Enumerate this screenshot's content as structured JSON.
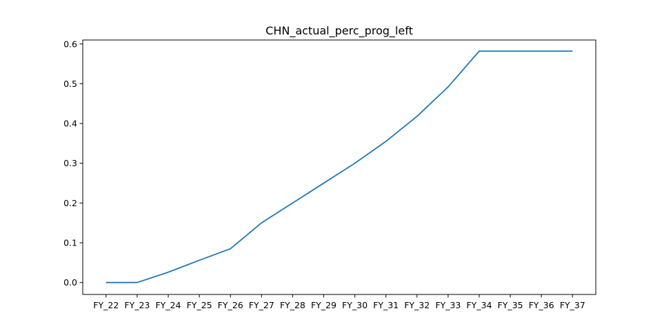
{
  "chart_data": {
    "type": "line",
    "title": "CHN_actual_perc_prog_left",
    "xlabel": "",
    "ylabel": "",
    "categories": [
      "FY_22",
      "FY_23",
      "FY_24",
      "FY_25",
      "FY_26",
      "FY_27",
      "FY_28",
      "FY_29",
      "FY_30",
      "FY_31",
      "FY_32",
      "FY_33",
      "FY_34",
      "FY_35",
      "FY_36",
      "FY_37"
    ],
    "series": [
      {
        "values": [
          0.0,
          0.0,
          0.026,
          0.056,
          0.085,
          0.15,
          0.2,
          0.25,
          0.3,
          0.355,
          0.418,
          0.492,
          0.582,
          0.582,
          0.582,
          0.582
        ],
        "color": "#1f77b4"
      }
    ],
    "ylim": [
      -0.03,
      0.61
    ],
    "yticks": [
      0.0,
      0.1,
      0.2,
      0.3,
      0.4,
      0.5,
      0.6
    ],
    "ytick_labels": [
      "0.0",
      "0.1",
      "0.2",
      "0.3",
      "0.4",
      "0.5",
      "0.6"
    ],
    "grid": false,
    "legend": "none"
  }
}
